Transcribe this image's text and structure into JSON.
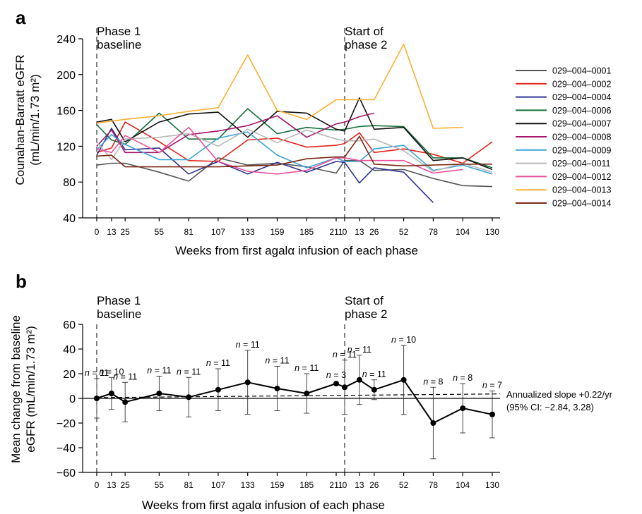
{
  "chart_data": [
    {
      "panel": "a",
      "type": "line",
      "phase1_label": [
        "Phase 1",
        "baseline"
      ],
      "phase2_label": [
        "Start of",
        "phase 2"
      ],
      "ylabel": [
        "Counahan-Barratt eGFR",
        "(mL/min/1.73 m²)"
      ],
      "xlabel": "Weeks from first agalα infusion of each phase",
      "ylim": [
        40,
        240
      ],
      "yticks": [
        40,
        80,
        120,
        160,
        200,
        240
      ],
      "x_phase1": [
        0,
        13,
        25,
        55,
        81,
        107,
        133,
        159,
        185,
        211
      ],
      "x_phase2": [
        0,
        13,
        26,
        52,
        78,
        104,
        130
      ],
      "series": [
        {
          "name": "029–004–0001",
          "color": "#555555",
          "phase1": [
            99,
            101,
            101,
            91,
            81,
            107,
            99,
            101,
            97,
            90
          ],
          "phase2": [
            104,
            104,
            93,
            94,
            84,
            76,
            75
          ]
        },
        {
          "name": "029–004–0002",
          "color": "#e2231a",
          "phase1": [
            113,
            118,
            147,
            125,
            104,
            103,
            127,
            129,
            119,
            121
          ],
          "phase2": [
            123,
            135,
            113,
            117,
            111,
            101,
            125
          ]
        },
        {
          "name": "029–004–0004",
          "color": "#2e3192",
          "phase1": [
            110,
            140,
            116,
            118,
            89,
            103,
            89,
            102,
            91,
            103
          ],
          "phase2": [
            102,
            79,
            96,
            91,
            57,
            null,
            null
          ]
        },
        {
          "name": "029–004–0006",
          "color": "#12703a",
          "phase1": [
            144,
            127,
            122,
            157,
            128,
            128,
            162,
            134,
            141,
            138
          ],
          "phase2": [
            139,
            142,
            143,
            142,
            107,
            107,
            96
          ]
        },
        {
          "name": "029–004–0007",
          "color": "#111111",
          "phase1": [
            147,
            150,
            125,
            147,
            156,
            158,
            130,
            159,
            157,
            139
          ],
          "phase2": [
            137,
            174,
            139,
            141,
            104,
            107,
            94
          ]
        },
        {
          "name": "029–004–0008",
          "color": "#a3166a",
          "phase1": [
            120,
            138,
            113,
            113,
            133,
            137,
            143,
            154,
            130,
            145
          ],
          "phase2": [
            147,
            153,
            157,
            null,
            null,
            null,
            null
          ]
        },
        {
          "name": "029–004–0009",
          "color": "#3aa4d6",
          "phase1": [
            116,
            133,
            122,
            105,
            105,
            129,
            136,
            110,
            96,
            107
          ],
          "phase2": [
            103,
            103,
            117,
            121,
            93,
            99,
            89
          ]
        },
        {
          "name": "029–004–0011",
          "color": "#b8b8b8",
          "phase1": [
            125,
            105,
            128,
            130,
            134,
            120,
            139,
            124,
            138,
            128
          ],
          "phase2": [
            126,
            126,
            128,
            115,
            92,
            101,
            91
          ]
        },
        {
          "name": "029–004–0012",
          "color": "#e9509a",
          "phase1": [
            117,
            113,
            132,
            113,
            141,
            103,
            92,
            89,
            93,
            107
          ],
          "phase2": [
            107,
            104,
            104,
            104,
            90,
            94,
            null
          ]
        },
        {
          "name": "029–004–0013",
          "color": "#fbb034",
          "phase1": [
            146,
            148,
            150,
            154,
            159,
            163,
            222,
            160,
            150,
            172
          ],
          "phase2": [
            172,
            172,
            172,
            234,
            140,
            141,
            null
          ]
        },
        {
          "name": "029–004–0014",
          "color": "#7a2a14",
          "phase1": [
            109,
            110,
            97,
            97,
            97,
            97,
            98,
            99,
            106,
            108
          ],
          "phase2": [
            108,
            131,
            100,
            98,
            99,
            100,
            100
          ]
        }
      ]
    },
    {
      "panel": "b",
      "type": "line",
      "phase1_label": [
        "Phase 1",
        "baseline"
      ],
      "phase2_label": [
        "Start of",
        "phase 2"
      ],
      "ylabel": [
        "Mean change from baseline",
        "eGFR (mL/min/1.73 m²)"
      ],
      "xlabel": "Weeks from first agalα infusion of each phase",
      "ylim": [
        -60,
        60
      ],
      "yticks": [
        -60,
        -40,
        -20,
        0,
        20,
        40,
        60
      ],
      "x_phase1": [
        0,
        13,
        25,
        55,
        81,
        107,
        133,
        159,
        185,
        211
      ],
      "x_phase2": [
        0,
        13,
        26,
        52,
        78,
        104,
        130
      ],
      "mean_phase1": [
        0,
        4,
        -3,
        4,
        1,
        7,
        13,
        8,
        4,
        12
      ],
      "mean_phase2": [
        9,
        15,
        7,
        15,
        -20,
        -8,
        -13
      ],
      "error_phase1": [
        16,
        13,
        16,
        14,
        16,
        17,
        26,
        18,
        16,
        null
      ],
      "error_phase2": [
        22,
        20,
        8,
        28,
        29,
        20,
        19
      ],
      "n_phase1": [
        "n = 11",
        "n = 10",
        "n = 11",
        "n = 11",
        "n = 11",
        "n = 11",
        "n = 11",
        "n = 11",
        "n = 11",
        "n = 3"
      ],
      "n_phase2": [
        "n = 11",
        "n = 11",
        "n = 11",
        "n = 10",
        "n = 8",
        "n = 8",
        "n = 7"
      ],
      "slope_text": [
        "Annualized slope +0.22/yr",
        "(95% CI: −2.84, 3.28)"
      ]
    }
  ]
}
